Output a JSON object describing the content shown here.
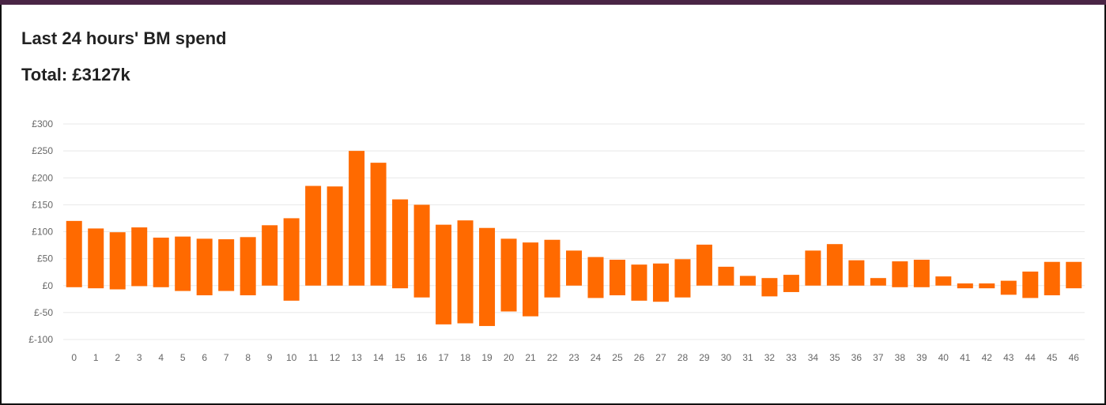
{
  "heading": {
    "title": "Last 24 hours' BM spend",
    "total": "Total: £3127k"
  },
  "chart_data": {
    "type": "bar",
    "title": "",
    "xlabel": "",
    "ylabel": "",
    "ylim": [
      -100,
      300
    ],
    "y_ticks": [
      "£300",
      "£250",
      "£200",
      "£150",
      "£100",
      "£50",
      "£0",
      "£-50",
      "£-100"
    ],
    "y_tick_values": [
      300,
      250,
      200,
      150,
      100,
      50,
      0,
      -50,
      -100
    ],
    "grid": true,
    "bar_color": "#ff6a00",
    "categories": [
      "0",
      "1",
      "2",
      "3",
      "4",
      "5",
      "6",
      "7",
      "8",
      "9",
      "10",
      "11",
      "12",
      "13",
      "14",
      "15",
      "16",
      "17",
      "18",
      "19",
      "20",
      "21",
      "22",
      "23",
      "24",
      "25",
      "26",
      "27",
      "28",
      "29",
      "30",
      "31",
      "32",
      "33",
      "34",
      "35",
      "36",
      "37",
      "38",
      "39",
      "40",
      "41",
      "42",
      "43",
      "44",
      "45",
      "46"
    ],
    "series": [
      {
        "low": [
          -3,
          -5,
          -7,
          -1,
          -3,
          -10,
          -18,
          -10,
          -18,
          0,
          -28,
          0,
          0,
          0,
          0,
          -5,
          -22,
          -72,
          -70,
          -75,
          -48,
          -57,
          -22,
          0,
          -23,
          -18,
          -28,
          -30,
          -22,
          0,
          0,
          0,
          -20,
          -12,
          0,
          0,
          0,
          0,
          -3,
          -3,
          0,
          -5,
          -5,
          -17,
          -23,
          -18,
          -5
        ],
        "high": [
          120,
          106,
          99,
          108,
          89,
          91,
          87,
          86,
          90,
          112,
          125,
          185,
          184,
          250,
          228,
          160,
          150,
          113,
          121,
          107,
          87,
          80,
          85,
          65,
          53,
          48,
          39,
          41,
          49,
          76,
          35,
          18,
          14,
          20,
          65,
          77,
          47,
          14,
          45,
          48,
          17,
          4,
          4,
          9,
          26,
          44,
          44
        ]
      }
    ]
  }
}
